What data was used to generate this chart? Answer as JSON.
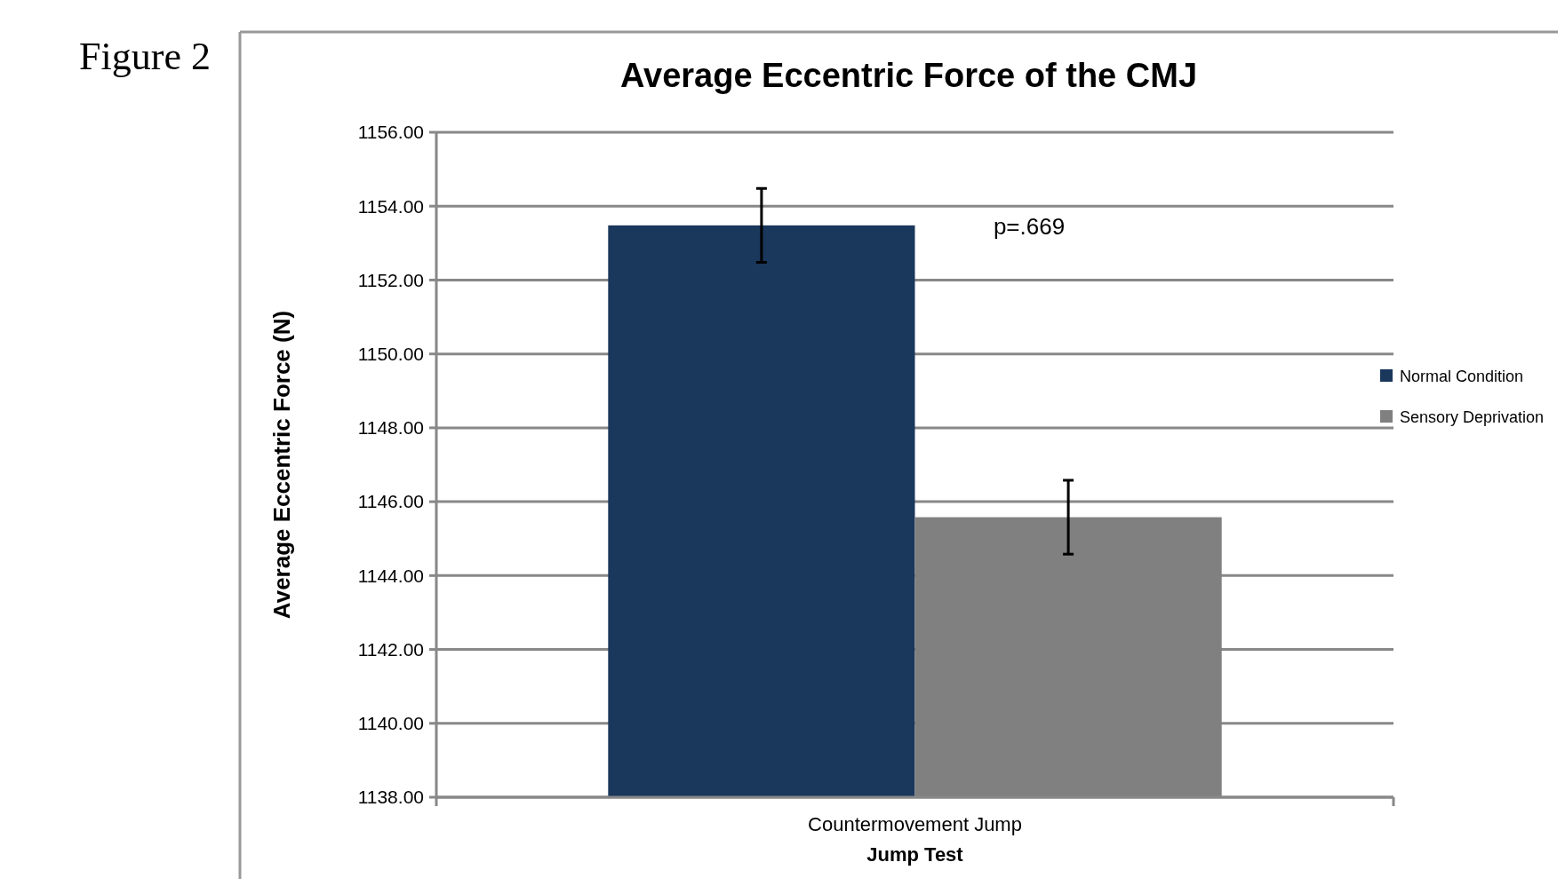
{
  "chart_data": {
    "type": "bar",
    "title": "Average Eccentric Force of the CMJ",
    "xlabel": "Jump Test",
    "ylabel": "Average Eccentric Force (N)",
    "categories": [
      "Countermovement Jump"
    ],
    "series": [
      {
        "name": "Normal Condition",
        "color": "#1a375c",
        "values": [
          1153.48
        ],
        "errors": [
          1.0
        ]
      },
      {
        "name": "Sensory Deprivation",
        "color": "#808080",
        "values": [
          1145.58
        ],
        "errors": [
          1.0
        ]
      }
    ],
    "ylim": [
      1138,
      1156
    ],
    "yticks": [
      {
        "value": 1138,
        "label": "1138.00"
      },
      {
        "value": 1140,
        "label": "1140.00"
      },
      {
        "value": 1142,
        "label": "1142.00"
      },
      {
        "value": 1144,
        "label": "1144.00"
      },
      {
        "value": 1146,
        "label": "1146.00"
      },
      {
        "value": 1148,
        "label": "1148.00"
      },
      {
        "value": 1150,
        "label": "1150.00"
      },
      {
        "value": 1152,
        "label": "1152.00"
      },
      {
        "value": 1154,
        "label": "1154.00"
      },
      {
        "value": 1156,
        "label": "1156.00"
      }
    ],
    "grid": "y",
    "legend": "right",
    "annotations": [
      "Figure 2",
      "p=.669"
    ]
  }
}
